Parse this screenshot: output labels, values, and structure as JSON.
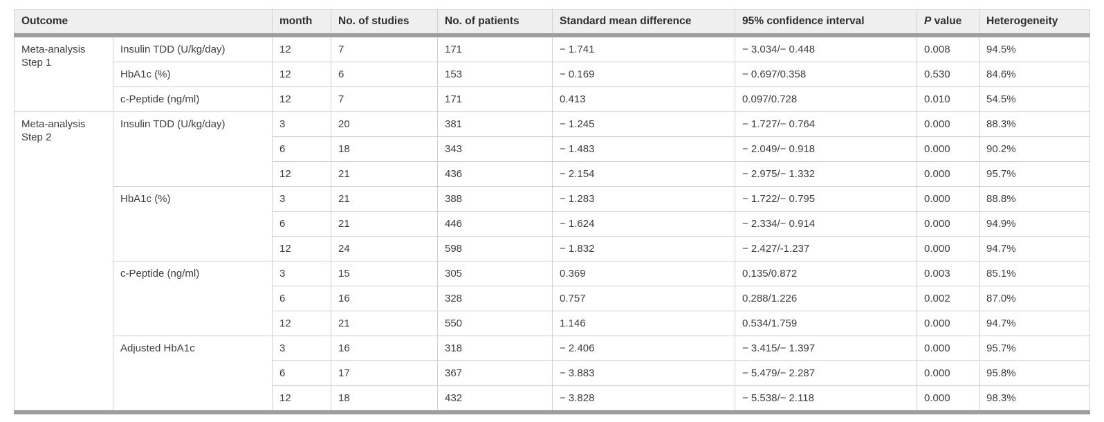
{
  "table": {
    "title": "meta-analysis-results-table",
    "colors": {
      "header_bg": "#efefef",
      "thick_rule": "#9e9e9e",
      "grid_line": "#cfcfcf",
      "header_text": "#2f2f2f",
      "body_text": "#3d3d3d"
    },
    "columns": {
      "outcome": "Outcome",
      "month": "month",
      "studies": "No. of studies",
      "patients": "No. of patients",
      "smd": "Standard mean difference",
      "ci": "95% confidence interval",
      "p_italic": "P",
      "p_rest": " value",
      "heterogeneity": "Heterogeneity"
    },
    "groups": [
      {
        "outcome": "Meta-analysis Step 1",
        "subgroups": [
          {
            "label": "Insulin TDD (U/kg/day)",
            "rows": [
              {
                "month": "12",
                "studies": "7",
                "patients": "171",
                "smd": "− 1.741",
                "ci": "− 3.034/− 0.448",
                "p": "0.008",
                "het": "94.5%"
              }
            ]
          },
          {
            "label": "HbA1c (%)",
            "rows": [
              {
                "month": "12",
                "studies": "6",
                "patients": "153",
                "smd": "− 0.169",
                "ci": "− 0.697/0.358",
                "p": "0.530",
                "het": "84.6%"
              }
            ]
          },
          {
            "label": "c-Peptide (ng/ml)",
            "rows": [
              {
                "month": "12",
                "studies": "7",
                "patients": "171",
                "smd": "0.413",
                "ci": "0.097/0.728",
                "p": "0.010",
                "het": "54.5%"
              }
            ]
          }
        ]
      },
      {
        "outcome": "Meta-analysis Step 2",
        "subgroups": [
          {
            "label": "Insulin TDD (U/kg/day)",
            "rows": [
              {
                "month": "3",
                "studies": "20",
                "patients": "381",
                "smd": "− 1.245",
                "ci": "− 1.727/− 0.764",
                "p": "0.000",
                "het": "88.3%"
              },
              {
                "month": "6",
                "studies": "18",
                "patients": "343",
                "smd": "− 1.483",
                "ci": "− 2.049/− 0.918",
                "p": "0.000",
                "het": "90.2%"
              },
              {
                "month": "12",
                "studies": "21",
                "patients": "436",
                "smd": "− 2.154",
                "ci": "− 2.975/− 1.332",
                "p": "0.000",
                "het": "95.7%"
              }
            ]
          },
          {
            "label": "HbA1c (%)",
            "rows": [
              {
                "month": "3",
                "studies": "21",
                "patients": "388",
                "smd": "− 1.283",
                "ci": "− 1.722/− 0.795",
                "p": "0.000",
                "het": "88.8%"
              },
              {
                "month": "6",
                "studies": "21",
                "patients": "446",
                "smd": "− 1.624",
                "ci": "− 2.334/− 0.914",
                "p": "0.000",
                "het": "94.9%"
              },
              {
                "month": "12",
                "studies": "24",
                "patients": "598",
                "smd": "− 1.832",
                "ci": "− 2.427/-1.237",
                "p": "0.000",
                "het": "94.7%"
              }
            ]
          },
          {
            "label": "c-Peptide (ng/ml)",
            "rows": [
              {
                "month": "3",
                "studies": "15",
                "patients": "305",
                "smd": "0.369",
                "ci": "0.135/0.872",
                "p": "0.003",
                "het": "85.1%"
              },
              {
                "month": "6",
                "studies": "16",
                "patients": "328",
                "smd": "0.757",
                "ci": "0.288/1.226",
                "p": "0.002",
                "het": "87.0%"
              },
              {
                "month": "12",
                "studies": "21",
                "patients": "550",
                "smd": "1.146",
                "ci": "0.534/1.759",
                "p": "0.000",
                "het": "94.7%"
              }
            ]
          },
          {
            "label": "Adjusted HbA1c",
            "rows": [
              {
                "month": "3",
                "studies": "16",
                "patients": "318",
                "smd": "− 2.406",
                "ci": "− 3.415/− 1.397",
                "p": "0.000",
                "het": "95.7%"
              },
              {
                "month": "6",
                "studies": "17",
                "patients": "367",
                "smd": "− 3.883",
                "ci": "− 5.479/− 2.287",
                "p": "0.000",
                "het": "95.8%"
              },
              {
                "month": "12",
                "studies": "18",
                "patients": "432",
                "smd": "− 3.828",
                "ci": "− 5.538/− 2.118",
                "p": "0.000",
                "het": "98.3%"
              }
            ]
          }
        ]
      }
    ]
  }
}
